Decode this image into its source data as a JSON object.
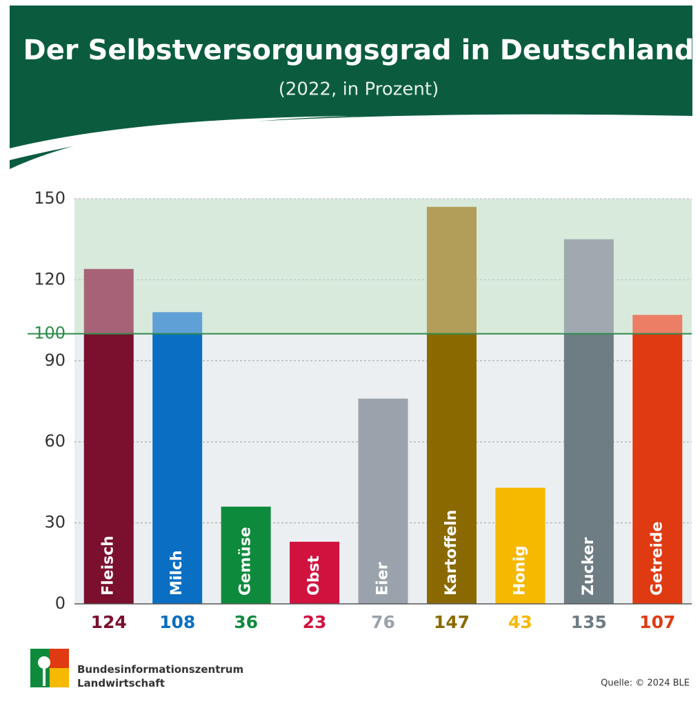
{
  "chart_data": {
    "type": "bar",
    "title": "Der Selbstversorgungsgrad in Deutschland",
    "subtitle": "(2022, in Prozent)",
    "categories": [
      "Fleisch",
      "Milch",
      "Gemüse",
      "Obst",
      "Eier",
      "Kartoffeln",
      "Honig",
      "Zucker",
      "Getreide"
    ],
    "values": [
      124,
      108,
      36,
      23,
      76,
      147,
      43,
      135,
      107
    ],
    "colors": [
      "#7a0f2e",
      "#0a6fc2",
      "#0e8a3c",
      "#d1123f",
      "#9aa3ab",
      "#8a6a00",
      "#f7b800",
      "#6e7c84",
      "#e03a12"
    ],
    "ylim": [
      0,
      150
    ],
    "yticks": [
      0,
      30,
      60,
      90,
      100,
      120,
      150
    ],
    "grid": true,
    "reference_line": {
      "value": 100,
      "color": "#2e8b4a"
    },
    "logo": "Bundesinformationszentrum\nLandwirtschaft",
    "source": "Quelle: © 2024 BLE"
  }
}
